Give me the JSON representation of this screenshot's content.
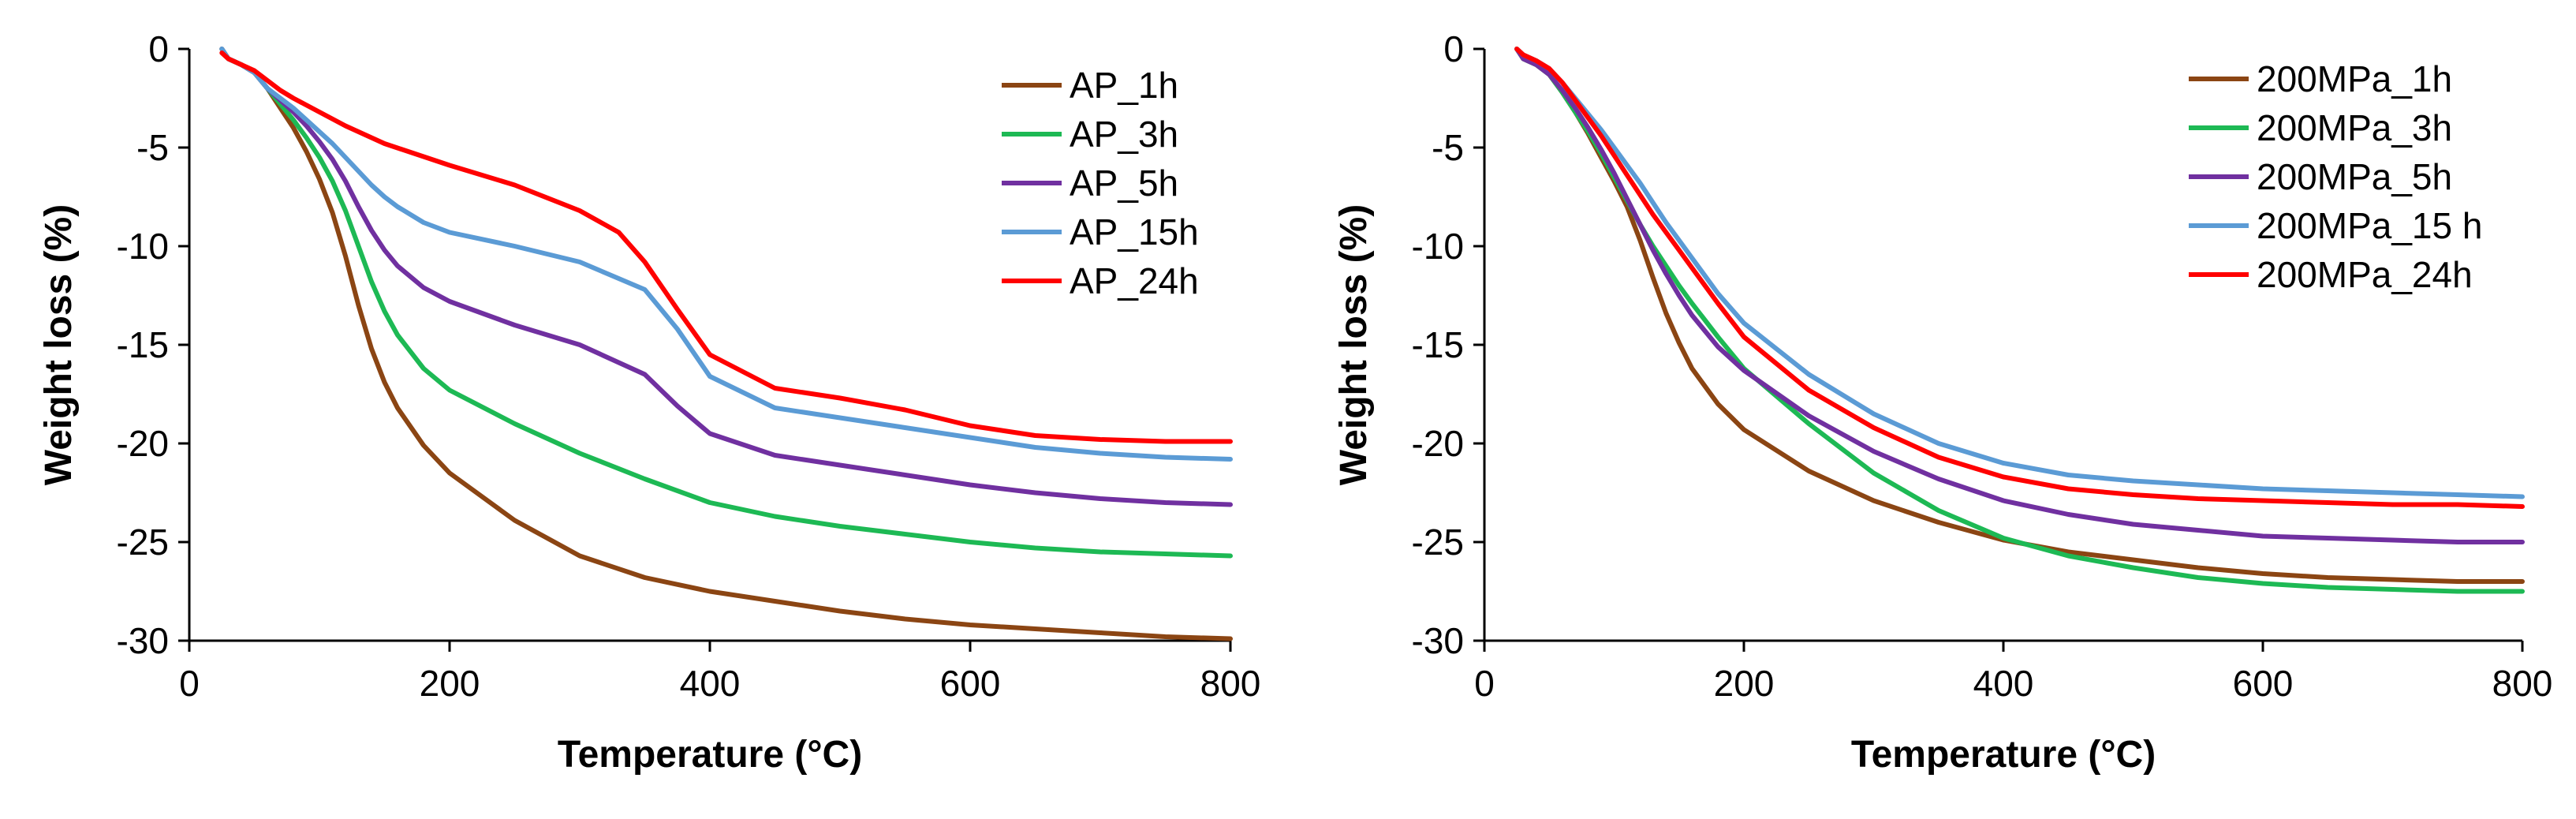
{
  "chart_data": [
    {
      "type": "line",
      "title": "",
      "xlabel": "Temperature (°C)",
      "ylabel": "Weight loss (%)",
      "xlim": [
        0,
        800
      ],
      "ylim": [
        -30,
        0
      ],
      "xticks": [
        0,
        200,
        400,
        600,
        800
      ],
      "yticks": [
        0,
        -5,
        -10,
        -15,
        -20,
        -25,
        -30
      ],
      "grid": false,
      "legend_position": "top-right",
      "series": [
        {
          "name": "AP_1h",
          "color": "#8B4513",
          "x": [
            25,
            30,
            40,
            50,
            60,
            70,
            80,
            90,
            100,
            110,
            120,
            130,
            140,
            150,
            160,
            180,
            200,
            250,
            300,
            350,
            400,
            450,
            500,
            550,
            600,
            650,
            700,
            750,
            800
          ],
          "y": [
            0,
            -0.5,
            -0.8,
            -1.2,
            -2.0,
            -3.0,
            -4.0,
            -5.2,
            -6.6,
            -8.3,
            -10.5,
            -13.0,
            -15.2,
            -16.9,
            -18.2,
            -20.1,
            -21.5,
            -23.9,
            -25.7,
            -26.8,
            -27.5,
            -28.0,
            -28.5,
            -28.9,
            -29.2,
            -29.4,
            -29.6,
            -29.8,
            -29.9
          ]
        },
        {
          "name": "AP_3h",
          "color": "#1DB954",
          "x": [
            25,
            30,
            40,
            50,
            60,
            70,
            80,
            90,
            100,
            110,
            120,
            130,
            140,
            150,
            160,
            180,
            200,
            250,
            300,
            350,
            400,
            450,
            500,
            550,
            600,
            650,
            700,
            750,
            800
          ],
          "y": [
            0,
            -0.5,
            -0.8,
            -1.2,
            -2.0,
            -2.8,
            -3.6,
            -4.5,
            -5.5,
            -6.7,
            -8.2,
            -10.0,
            -11.8,
            -13.3,
            -14.5,
            -16.2,
            -17.3,
            -19.0,
            -20.5,
            -21.8,
            -23.0,
            -23.7,
            -24.2,
            -24.6,
            -25.0,
            -25.3,
            -25.5,
            -25.6,
            -25.7
          ]
        },
        {
          "name": "AP_5h",
          "color": "#7030A0",
          "x": [
            25,
            30,
            40,
            50,
            60,
            70,
            80,
            90,
            100,
            110,
            120,
            130,
            140,
            150,
            160,
            180,
            200,
            250,
            300,
            350,
            375,
            400,
            450,
            500,
            550,
            600,
            650,
            700,
            750,
            800
          ],
          "y": [
            0,
            -0.5,
            -0.8,
            -1.2,
            -2.0,
            -2.6,
            -3.2,
            -3.9,
            -4.7,
            -5.6,
            -6.7,
            -8.0,
            -9.2,
            -10.2,
            -11.0,
            -12.1,
            -12.8,
            -14.0,
            -15.0,
            -16.5,
            -18.1,
            -19.5,
            -20.6,
            -21.1,
            -21.6,
            -22.1,
            -22.5,
            -22.8,
            -23.0,
            -23.1
          ]
        },
        {
          "name": "AP_15h",
          "color": "#5B9BD5",
          "x": [
            25,
            30,
            40,
            50,
            60,
            70,
            80,
            90,
            100,
            110,
            120,
            130,
            140,
            150,
            160,
            180,
            200,
            250,
            300,
            350,
            375,
            400,
            450,
            500,
            550,
            600,
            650,
            700,
            750,
            800
          ],
          "y": [
            0,
            -0.5,
            -0.8,
            -1.2,
            -2.0,
            -2.5,
            -3.0,
            -3.6,
            -4.2,
            -4.8,
            -5.5,
            -6.2,
            -6.9,
            -7.5,
            -8.0,
            -8.8,
            -9.3,
            -10.0,
            -10.8,
            -12.2,
            -14.2,
            -16.6,
            -18.2,
            -18.7,
            -19.2,
            -19.7,
            -20.2,
            -20.5,
            -20.7,
            -20.8
          ]
        },
        {
          "name": "AP_24h",
          "color": "#FF0000",
          "x": [
            25,
            30,
            40,
            50,
            60,
            70,
            80,
            100,
            120,
            150,
            200,
            250,
            300,
            330,
            350,
            375,
            400,
            450,
            500,
            550,
            600,
            650,
            700,
            750,
            800
          ],
          "y": [
            -0.2,
            -0.5,
            -0.8,
            -1.1,
            -1.6,
            -2.1,
            -2.5,
            -3.2,
            -3.9,
            -4.8,
            -5.9,
            -6.9,
            -8.2,
            -9.3,
            -10.8,
            -13.2,
            -15.5,
            -17.2,
            -17.7,
            -18.3,
            -19.1,
            -19.6,
            -19.8,
            -19.9,
            -19.9
          ]
        }
      ]
    },
    {
      "type": "line",
      "title": "",
      "xlabel": "Temperature (°C)",
      "ylabel": "Weight loss (%)",
      "xlim": [
        0,
        800
      ],
      "ylim": [
        -30,
        0
      ],
      "xticks": [
        0,
        200,
        400,
        600,
        800
      ],
      "yticks": [
        0,
        -5,
        -10,
        -15,
        -20,
        -25,
        -30
      ],
      "grid": false,
      "legend_position": "top-right",
      "series": [
        {
          "name": "200MPa_1h",
          "color": "#8B4513",
          "x": [
            25,
            30,
            40,
            50,
            60,
            70,
            80,
            90,
            100,
            110,
            120,
            130,
            140,
            150,
            160,
            180,
            200,
            250,
            300,
            350,
            400,
            450,
            500,
            550,
            600,
            650,
            700,
            750,
            800
          ],
          "y": [
            0,
            -0.5,
            -0.8,
            -1.3,
            -2.2,
            -3.2,
            -4.3,
            -5.5,
            -6.7,
            -8.0,
            -9.7,
            -11.6,
            -13.4,
            -14.9,
            -16.2,
            -18.0,
            -19.3,
            -21.4,
            -22.9,
            -24.0,
            -24.9,
            -25.5,
            -25.9,
            -26.3,
            -26.6,
            -26.8,
            -26.9,
            -27.0,
            -27.0
          ]
        },
        {
          "name": "200MPa_3h",
          "color": "#1DB954",
          "x": [
            25,
            30,
            40,
            50,
            60,
            70,
            80,
            90,
            100,
            110,
            120,
            130,
            140,
            150,
            160,
            180,
            200,
            250,
            300,
            350,
            400,
            450,
            500,
            550,
            600,
            650,
            700,
            750,
            800
          ],
          "y": [
            0,
            -0.5,
            -0.8,
            -1.3,
            -2.2,
            -3.2,
            -4.2,
            -5.3,
            -6.5,
            -7.7,
            -8.9,
            -10.0,
            -11.0,
            -12.0,
            -12.9,
            -14.6,
            -16.2,
            -19.0,
            -21.5,
            -23.4,
            -24.8,
            -25.7,
            -26.3,
            -26.8,
            -27.1,
            -27.3,
            -27.4,
            -27.5,
            -27.5
          ]
        },
        {
          "name": "200MPa_5h",
          "color": "#7030A0",
          "x": [
            25,
            30,
            40,
            50,
            60,
            70,
            80,
            90,
            100,
            110,
            120,
            130,
            140,
            150,
            160,
            180,
            200,
            250,
            300,
            350,
            400,
            450,
            500,
            550,
            600,
            650,
            700,
            750,
            800
          ],
          "y": [
            0,
            -0.5,
            -0.8,
            -1.3,
            -2.1,
            -3.0,
            -4.0,
            -5.1,
            -6.3,
            -7.6,
            -8.9,
            -10.2,
            -11.4,
            -12.5,
            -13.5,
            -15.1,
            -16.3,
            -18.6,
            -20.4,
            -21.8,
            -22.9,
            -23.6,
            -24.1,
            -24.4,
            -24.7,
            -24.8,
            -24.9,
            -25.0,
            -25.0
          ]
        },
        {
          "name": "200MPa_15 h",
          "color": "#5B9BD5",
          "x": [
            25,
            30,
            40,
            50,
            60,
            70,
            80,
            90,
            100,
            110,
            120,
            130,
            140,
            150,
            160,
            180,
            200,
            250,
            300,
            350,
            400,
            450,
            500,
            550,
            600,
            650,
            700,
            750,
            800
          ],
          "y": [
            0,
            -0.3,
            -0.6,
            -1.0,
            -1.7,
            -2.5,
            -3.3,
            -4.1,
            -5.0,
            -5.9,
            -6.8,
            -7.8,
            -8.8,
            -9.7,
            -10.6,
            -12.4,
            -13.9,
            -16.5,
            -18.5,
            -20.0,
            -21.0,
            -21.6,
            -21.9,
            -22.1,
            -22.3,
            -22.4,
            -22.5,
            -22.6,
            -22.7
          ]
        },
        {
          "name": "200MPa_24h",
          "color": "#FF0000",
          "x": [
            25,
            30,
            40,
            50,
            60,
            70,
            80,
            90,
            100,
            110,
            120,
            130,
            140,
            150,
            160,
            180,
            200,
            250,
            300,
            350,
            400,
            450,
            500,
            550,
            600,
            650,
            700,
            750,
            800
          ],
          "y": [
            0,
            -0.3,
            -0.6,
            -1.0,
            -1.7,
            -2.6,
            -3.5,
            -4.4,
            -5.4,
            -6.4,
            -7.4,
            -8.4,
            -9.3,
            -10.2,
            -11.1,
            -12.9,
            -14.6,
            -17.3,
            -19.2,
            -20.7,
            -21.7,
            -22.3,
            -22.6,
            -22.8,
            -22.9,
            -23.0,
            -23.1,
            -23.1,
            -23.2
          ]
        }
      ]
    }
  ]
}
